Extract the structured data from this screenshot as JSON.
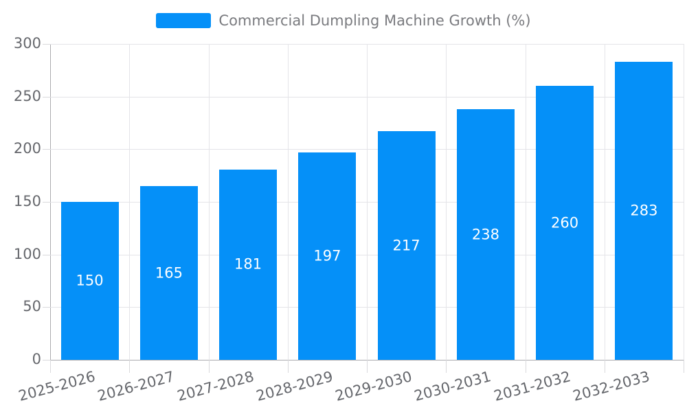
{
  "legend": {
    "label": "Commercial Dumpling Machine Growth (%)"
  },
  "colors": {
    "bar": "#0590f8",
    "bar_value_text": "#ffffff",
    "axis_line": "#aaaaae",
    "grid_line": "#e4e4e8",
    "tick_line": "#d9d9dc",
    "axis_text": "#65676c",
    "legend_text": "#7a7b7f",
    "background": "#ffffff"
  },
  "chart_data": {
    "type": "bar",
    "title": "Commercial Dumpling Machine Growth (%)",
    "categories": [
      "2025-2026",
      "2026-2027",
      "2027-2028",
      "2028-2029",
      "2029-2030",
      "2030-2031",
      "2031-2032",
      "2032-2033"
    ],
    "values": [
      150,
      165,
      181,
      197,
      217,
      238,
      260,
      283
    ],
    "series": [
      {
        "name": "Commercial Dumpling Machine Growth (%)",
        "values": [
          150,
          165,
          181,
          197,
          217,
          238,
          260,
          283
        ]
      }
    ],
    "xlabel": "",
    "ylabel": "",
    "ylim": [
      0,
      300
    ],
    "yticks": [
      0,
      50,
      100,
      150,
      200,
      250,
      300
    ],
    "grid": true,
    "legend_position": "top-center",
    "x_tick_label_rotation_deg": 15,
    "bar_labels_inside": true
  }
}
